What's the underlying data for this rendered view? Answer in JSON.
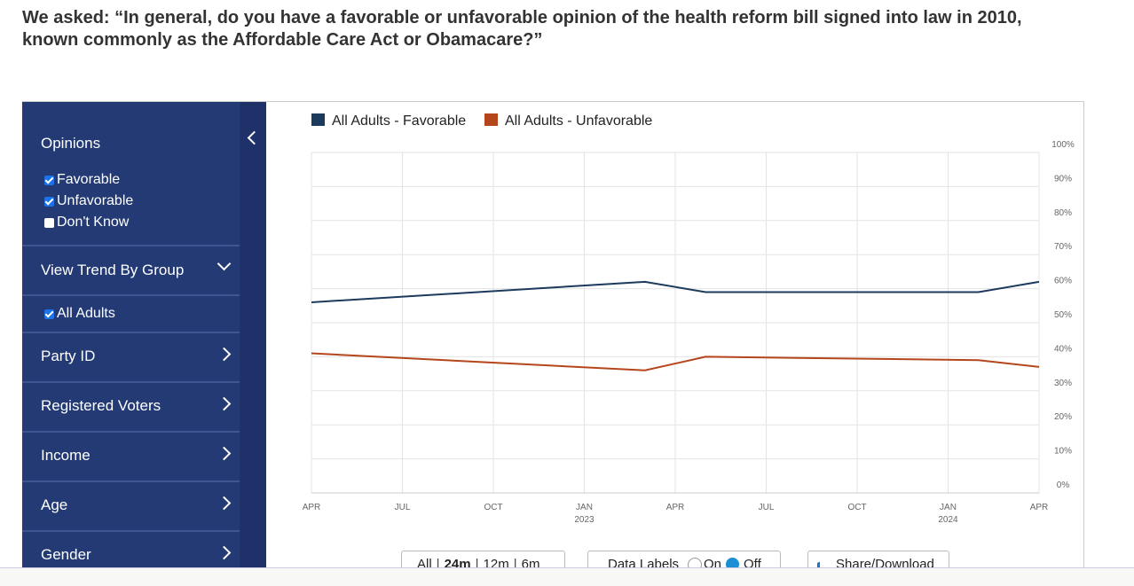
{
  "header": {
    "title": "We asked: “In general, do you have a favorable or unfavorable opinion of the health reform bill signed into law in 2010, known commonly as the Affordable Care Act or Obamacare?”"
  },
  "sidebar": {
    "opinions_title": "Opinions",
    "opinions": [
      {
        "label": "Favorable",
        "checked": true
      },
      {
        "label": "Unfavorable",
        "checked": true
      },
      {
        "label": "Don't Know",
        "checked": false
      }
    ],
    "group_title": "View Trend By Group",
    "groups": [
      {
        "label": "All Adults",
        "checked": true
      }
    ],
    "sections": [
      "Party ID",
      "Registered Voters",
      "Income",
      "Age",
      "Gender"
    ]
  },
  "chart_data": {
    "type": "line",
    "x": [
      "2022-04",
      "2023-03",
      "2023-05",
      "2024-02",
      "2024-04"
    ],
    "series": [
      {
        "name": "All Adults - Favorable",
        "color": "#1b3a5c",
        "values": [
          56,
          62,
          59,
          59,
          62
        ]
      },
      {
        "name": "All Adults - Unfavorable",
        "color": "#b5461c",
        "values": [
          41,
          36,
          40,
          39,
          37
        ]
      }
    ],
    "xlim": [
      "2022-04",
      "2024-04"
    ],
    "xticks": [
      {
        "value": "2022-04",
        "label": "APR"
      },
      {
        "value": "2022-07",
        "label": "JUL"
      },
      {
        "value": "2022-10",
        "label": "OCT"
      },
      {
        "value": "2023-01",
        "label": "JAN",
        "year": "2023"
      },
      {
        "value": "2023-04",
        "label": "APR"
      },
      {
        "value": "2023-07",
        "label": "JUL"
      },
      {
        "value": "2023-10",
        "label": "OCT"
      },
      {
        "value": "2024-01",
        "label": "JAN",
        "year": "2024"
      },
      {
        "value": "2024-04",
        "label": "APR"
      }
    ],
    "ylim": [
      0,
      100
    ],
    "yticks": [
      {
        "value": 0,
        "label": "0%"
      },
      {
        "value": 10,
        "label": "10%"
      },
      {
        "value": 20,
        "label": "20%"
      },
      {
        "value": 30,
        "label": "30%"
      },
      {
        "value": 40,
        "label": "40%"
      },
      {
        "value": 50,
        "label": "50%"
      },
      {
        "value": 60,
        "label": "60%"
      },
      {
        "value": 70,
        "label": "70%"
      },
      {
        "value": 80,
        "label": "80%"
      },
      {
        "value": 90,
        "label": "90%"
      },
      {
        "value": 100,
        "label": "100%"
      }
    ],
    "grid": true
  },
  "controls": {
    "ranges": [
      "All",
      "24m",
      "12m",
      "6m"
    ],
    "data_labels": "Data Labels",
    "on": "On",
    "off": "Off",
    "share": "Share/Download"
  }
}
